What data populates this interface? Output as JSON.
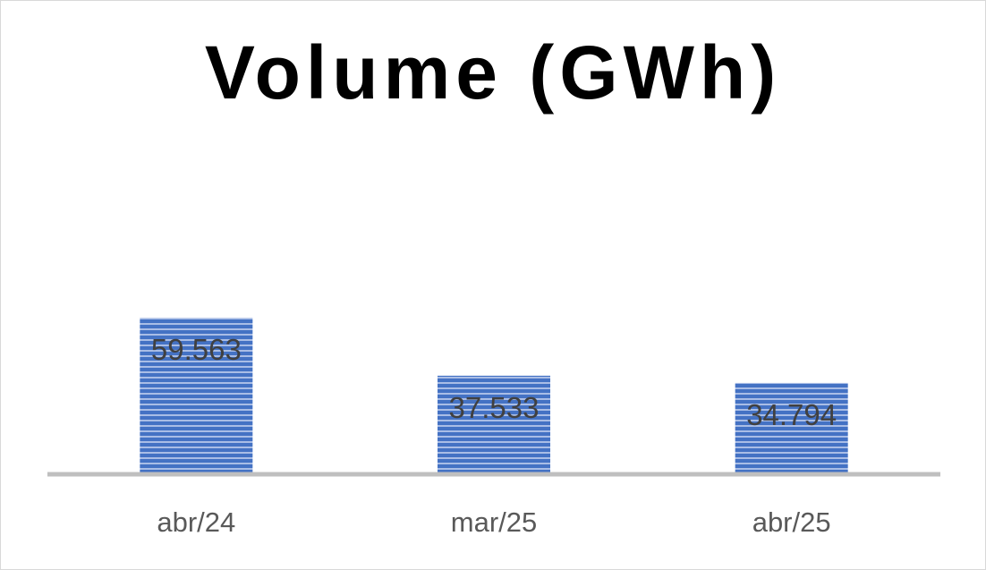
{
  "chart_data": {
    "type": "bar",
    "title": "Volume (GWh)",
    "categories": [
      "abr/24",
      "mar/25",
      "abr/25"
    ],
    "values": [
      59.563,
      37.533,
      34.794
    ],
    "data_labels": [
      "59.563",
      "37.533",
      "34.794"
    ],
    "xlabel": "",
    "ylabel": "",
    "ylim": [
      0,
      100
    ],
    "grid": false,
    "legend": "none",
    "colors": {
      "bar_fill": "#4472c4",
      "bar_stripe": "#ffffff",
      "axis": "#bfbfbf"
    }
  }
}
